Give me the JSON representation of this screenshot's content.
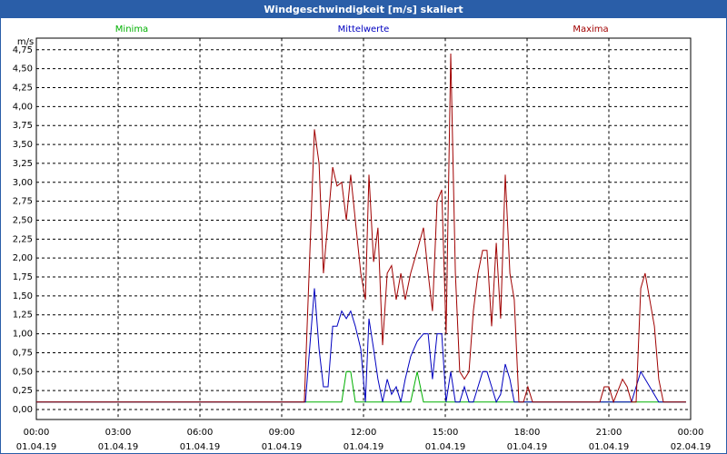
{
  "chart_data": {
    "type": "line",
    "title": "Windgeschwindigkeit [m/s] skaliert",
    "y_label": "m/s",
    "xlim": [
      0,
      24
    ],
    "ylim": [
      0,
      4.9
    ],
    "grid": true,
    "xticks": [
      {
        "value": 0,
        "label": "00:00",
        "date": "01.04.19"
      },
      {
        "value": 3,
        "label": "03:00",
        "date": "01.04.19"
      },
      {
        "value": 6,
        "label": "06:00",
        "date": "01.04.19"
      },
      {
        "value": 9,
        "label": "09:00",
        "date": "01.04.19"
      },
      {
        "value": 12,
        "label": "12:00",
        "date": "01.04.19"
      },
      {
        "value": 15,
        "label": "15:00",
        "date": "01.04.19"
      },
      {
        "value": 18,
        "label": "18:00",
        "date": "01.04.19"
      },
      {
        "value": 21,
        "label": "21:00",
        "date": "01.04.19"
      },
      {
        "value": 24,
        "label": "00:00",
        "date": "02.04.19"
      }
    ],
    "yticks": [
      {
        "value": 0,
        "label": "0,00"
      },
      {
        "value": 0.25,
        "label": "0,25"
      },
      {
        "value": 0.5,
        "label": "0,50"
      },
      {
        "value": 0.75,
        "label": "0,75"
      },
      {
        "value": 1,
        "label": "1,00"
      },
      {
        "value": 1.25,
        "label": "1,25"
      },
      {
        "value": 1.5,
        "label": "1,50"
      },
      {
        "value": 1.75,
        "label": "1,75"
      },
      {
        "value": 2,
        "label": "2,00"
      },
      {
        "value": 2.25,
        "label": "2,25"
      },
      {
        "value": 2.5,
        "label": "2,50"
      },
      {
        "value": 2.75,
        "label": "2,75"
      },
      {
        "value": 3,
        "label": "3,00"
      },
      {
        "value": 3.25,
        "label": "3,25"
      },
      {
        "value": 3.5,
        "label": "3,50"
      },
      {
        "value": 3.75,
        "label": "3,75"
      },
      {
        "value": 4,
        "label": "4,00"
      },
      {
        "value": 4.25,
        "label": "4,25"
      },
      {
        "value": 4.5,
        "label": "4,50"
      },
      {
        "value": 4.75,
        "label": "4,75"
      }
    ],
    "series": [
      {
        "name": "Minima",
        "color": "#00b000",
        "x": [
          0,
          11.2,
          11.37,
          11.53,
          11.7,
          13.73,
          13.97,
          14.2,
          23.83
        ],
        "values": [
          0.1,
          0.1,
          0.5,
          0.5,
          0.1,
          0.1,
          0.5,
          0.1,
          0.1
        ]
      },
      {
        "name": "Mittelwerte",
        "color": "#0000c0",
        "x": [
          0,
          9.87,
          10.2,
          10.37,
          10.53,
          10.7,
          10.87,
          11.03,
          11.2,
          11.37,
          11.53,
          11.7,
          11.9,
          12.07,
          12.2,
          12.37,
          12.53,
          12.7,
          12.87,
          13.03,
          13.2,
          13.37,
          13.53,
          13.73,
          13.97,
          14.2,
          14.37,
          14.53,
          14.7,
          14.87,
          15.03,
          15.2,
          15.37,
          15.53,
          15.7,
          15.87,
          16.03,
          16.2,
          16.37,
          16.53,
          16.7,
          16.87,
          17.03,
          17.2,
          17.37,
          17.53,
          21.83,
          22.17,
          22.5,
          22.83,
          23.83
        ],
        "values": [
          0.1,
          0.1,
          1.6,
          0.8,
          0.3,
          0.3,
          1.1,
          1.1,
          1.3,
          1.2,
          1.3,
          1.1,
          0.8,
          0.1,
          1.2,
          0.8,
          0.4,
          0.1,
          0.4,
          0.2,
          0.3,
          0.1,
          0.4,
          0.7,
          0.9,
          1.0,
          1.0,
          0.4,
          1.0,
          1.0,
          0.1,
          0.5,
          0.1,
          0.1,
          0.3,
          0.1,
          0.1,
          0.3,
          0.5,
          0.5,
          0.3,
          0.1,
          0.2,
          0.6,
          0.4,
          0.1,
          0.1,
          0.5,
          0.3,
          0.1,
          0.1
        ]
      },
      {
        "name": "Maxima",
        "color": "#a00000",
        "x": [
          0,
          9.83,
          10.2,
          10.37,
          10.53,
          10.87,
          11.03,
          11.2,
          11.37,
          11.53,
          11.7,
          11.9,
          12.07,
          12.2,
          12.37,
          12.53,
          12.7,
          12.87,
          13.03,
          13.2,
          13.37,
          13.53,
          13.73,
          13.97,
          14.2,
          14.37,
          14.53,
          14.7,
          14.87,
          15.03,
          15.2,
          15.37,
          15.53,
          15.7,
          15.87,
          16.03,
          16.2,
          16.37,
          16.53,
          16.7,
          16.87,
          17.03,
          17.2,
          17.37,
          17.53,
          17.7,
          17.87,
          18.03,
          18.2,
          20.67,
          20.83,
          21.0,
          21.17,
          21.5,
          21.67,
          21.83,
          22.0,
          22.17,
          22.33,
          22.5,
          22.67,
          22.83,
          23.0,
          23.83
        ],
        "values": [
          0.1,
          0.1,
          3.7,
          3.25,
          1.8,
          3.2,
          2.95,
          3.0,
          2.5,
          3.1,
          2.5,
          1.8,
          1.45,
          3.1,
          1.95,
          2.4,
          0.85,
          1.8,
          1.9,
          1.45,
          1.8,
          1.45,
          1.8,
          2.1,
          2.4,
          1.8,
          1.3,
          2.75,
          2.9,
          1.0,
          4.7,
          1.8,
          0.5,
          0.4,
          0.5,
          1.3,
          1.8,
          2.1,
          2.1,
          1.1,
          2.2,
          1.2,
          3.1,
          1.8,
          1.45,
          0.1,
          0.1,
          0.3,
          0.1,
          0.1,
          0.3,
          0.3,
          0.1,
          0.4,
          0.3,
          0.1,
          0.1,
          1.6,
          1.8,
          1.45,
          1.1,
          0.4,
          0.1,
          0.1
        ]
      }
    ]
  }
}
